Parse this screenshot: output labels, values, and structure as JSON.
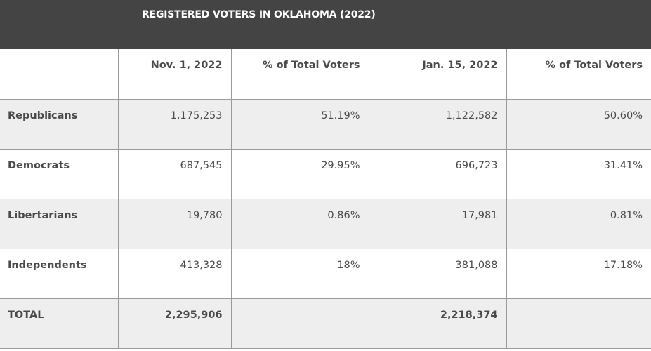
{
  "title": "REGISTERED VOTERS IN OKLAHOMA (2022)",
  "columns": [
    "",
    "Nov. 1, 2022",
    "% of Total Voters",
    "Jan. 15, 2022",
    "% of Total Voters"
  ],
  "rows": [
    {
      "party": "Republicans",
      "nov": "1,175,253",
      "nov_pct": "51.19%",
      "jan": "1,122,582",
      "jan_pct": "50.60%"
    },
    {
      "party": "Democrats",
      "nov": "687,545",
      "nov_pct": "29.95%",
      "jan": "696,723",
      "jan_pct": "31.41%"
    },
    {
      "party": "Libertarians",
      "nov": "19,780",
      "nov_pct": "0.86%",
      "jan": "17,981",
      "jan_pct": "0.81%"
    },
    {
      "party": "Independents",
      "nov": "413,328",
      "nov_pct": "18%",
      "jan": "381,088",
      "jan_pct": "17.18%"
    },
    {
      "party": "TOTAL",
      "nov": "2,295,906",
      "nov_pct": "",
      "jan": "2,218,374",
      "jan_pct": ""
    }
  ],
  "colors": {
    "header_bg": "#444444",
    "shaded_row": "#eeeeee",
    "border": "#9a9a9a"
  }
}
